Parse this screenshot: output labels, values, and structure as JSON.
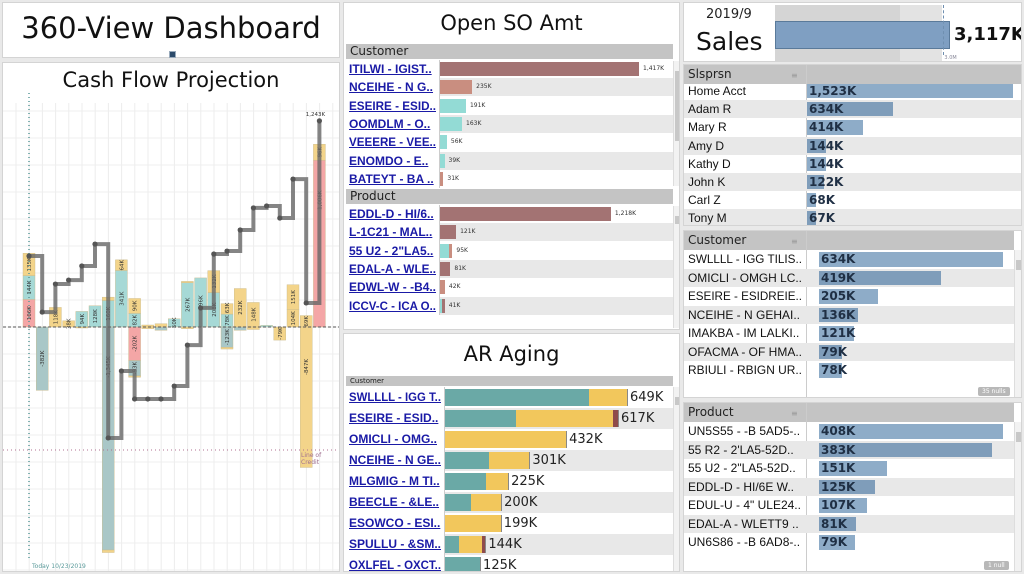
{
  "dashboard": {
    "title": "360-View Dashboard"
  },
  "cash_flow": {
    "title": "Cash Flow Projection",
    "today_label": "Today 10/23/2019",
    "credit_label": "Line of Credit",
    "chart_data": {
      "type": "bar",
      "title": "Cash Flow Projection",
      "units": "K",
      "colors": {
        "ar": "#a6d9d6",
        "ar_neg": "#a9c7c7",
        "so": "#f3d48a",
        "ap": "#f4a6a6",
        "line": "#666666"
      },
      "reference_lines": {
        "today": "Today 10/23/2019",
        "line_of_credit": -742
      },
      "end_label": "1,243K",
      "columns": [
        {
          "segments": [
            {
              "type": "ap",
              "value": 166,
              "label": "166K"
            },
            {
              "type": "ar",
              "value": 144,
              "label": "144K"
            },
            {
              "type": "so",
              "value": 135,
              "label": "135K"
            }
          ],
          "balance": 428
        },
        {
          "segments": [
            {
              "type": "ar_neg",
              "value": -382,
              "label": "-382K"
            }
          ],
          "balance": 90
        },
        {
          "segments": [
            {
              "type": "so",
              "value": 118,
              "label": "118K"
            }
          ],
          "balance": 259
        },
        {
          "segments": [
            {
              "type": "so",
              "value": 38,
              "label": "38K"
            }
          ],
          "balance": 283
        },
        {
          "segments": [
            {
              "type": "ar",
              "value": 94,
              "label": "94K"
            },
            {
              "type": "so",
              "value": -5
            }
          ],
          "balance": 368
        },
        {
          "segments": [
            {
              "type": "ar",
              "value": 128,
              "label": "128K"
            }
          ],
          "balance": 500
        },
        {
          "segments": [
            {
              "type": "ar",
              "value": 160,
              "label": "160K"
            },
            {
              "type": "so",
              "value": 20
            },
            {
              "type": "ar_neg",
              "value": -1345,
              "label": "-1,345K"
            },
            {
              "type": "so",
              "value": -15
            }
          ],
          "balance": -669
        },
        {
          "segments": [
            {
              "type": "ar",
              "value": 341,
              "label": "341K"
            },
            {
              "type": "so",
              "value": 64,
              "label": "64K"
            }
          ],
          "balance": -265
        },
        {
          "segments": [
            {
              "type": "ar",
              "value": 82,
              "label": "82K"
            },
            {
              "type": "so",
              "value": 90,
              "label": "90K"
            },
            {
              "type": "ap",
              "value": -202,
              "label": "-202K"
            },
            {
              "type": "ar_neg",
              "value": -93,
              "label": "-93K"
            },
            {
              "type": "so",
              "value": -8
            }
          ],
          "balance": -434
        },
        {
          "segments": [
            {
              "type": "so",
              "value": 12
            },
            {
              "type": "so",
              "value": -10
            }
          ],
          "balance": -434
        },
        {
          "segments": [
            {
              "type": "so",
              "value": 20
            },
            {
              "type": "ar_neg",
              "value": -20
            }
          ],
          "balance": -434
        },
        {
          "segments": [
            {
              "type": "ar",
              "value": 50,
              "label": "50K"
            }
          ],
          "balance": -356
        },
        {
          "segments": [
            {
              "type": "ar",
              "value": 267,
              "label": "267K"
            },
            {
              "type": "so",
              "value": 8
            },
            {
              "type": "so",
              "value": -10
            }
          ],
          "balance": -109
        },
        {
          "segments": [
            {
              "type": "ar",
              "value": 296,
              "label": "296K"
            }
          ],
          "balance": 115
        },
        {
          "segments": [
            {
              "type": "ar",
              "value": 208,
              "label": "208K"
            },
            {
              "type": "so",
              "value": 132,
              "label": "132K"
            }
          ],
          "balance": 440
        },
        {
          "segments": [
            {
              "type": "ar",
              "value": 78,
              "label": "78K"
            },
            {
              "type": "so",
              "value": 63,
              "label": "63K"
            },
            {
              "type": "ar_neg",
              "value": -123,
              "label": "-123K"
            },
            {
              "type": "so",
              "value": -10
            }
          ],
          "balance": 458
        },
        {
          "segments": [
            {
              "type": "so",
              "value": 232,
              "label": "232K"
            },
            {
              "type": "ar_neg",
              "value": -20
            }
          ],
          "balance": 585
        },
        {
          "segments": [
            {
              "type": "so",
              "value": 148,
              "label": "148K"
            },
            {
              "type": "so",
              "value": -15
            }
          ],
          "balance": 718
        },
        {
          "segments": [
            {
              "type": "ar",
              "value": 10
            }
          ],
          "balance": 730
        },
        {
          "segments": [
            {
              "type": "so",
              "value": -79,
              "label": "-79K"
            }
          ],
          "balance": 657
        },
        {
          "segments": [
            {
              "type": "so",
              "value": 104,
              "label": "104K"
            },
            {
              "type": "so",
              "value": 151,
              "label": "151K"
            }
          ],
          "balance": 892
        },
        {
          "segments": [
            {
              "type": "so",
              "value": 69,
              "label": "69K"
            },
            {
              "type": "so",
              "value": -847,
              "label": "-847K"
            }
          ],
          "balance": 145
        },
        {
          "segments": [
            {
              "type": "ap",
              "value": 1006,
              "label": "1,006K"
            },
            {
              "type": "so",
              "value": 96,
              "label": "96K"
            }
          ],
          "balance": 1243
        }
      ]
    }
  },
  "open_so": {
    "title": "Open SO Amt",
    "colors": {
      "mauve": "#a37373",
      "salmon": "#c98e80",
      "cyan": "#93dbd5"
    },
    "max": 1417,
    "customer": {
      "header": "Customer",
      "rows": [
        {
          "label": "ITILWI  -  IGIST..",
          "value": "1,417K",
          "segs": [
            [
              "mauve",
              1417
            ]
          ]
        },
        {
          "label": "NCEIHE  -  N G..",
          "value": "235K",
          "segs": [
            [
              "salmon",
              235
            ]
          ]
        },
        {
          "label": "ESEIRE  -  ESID..",
          "value": "191K",
          "segs": [
            [
              "cyan",
              191
            ]
          ]
        },
        {
          "label": "OOMDLM  -  O..",
          "value": "163K",
          "segs": [
            [
              "cyan",
              163
            ]
          ]
        },
        {
          "label": "VEEERE  -  VEE..",
          "value": "56K",
          "segs": [
            [
              "cyan",
              56
            ]
          ]
        },
        {
          "label": "ENOMDO  -  E..",
          "value": "39K",
          "segs": [
            [
              "cyan",
              39
            ]
          ]
        },
        {
          "label": "BATEYT  -  BA ..",
          "value": "31K",
          "segs": [
            [
              "salmon",
              31
            ]
          ]
        }
      ]
    },
    "product": {
      "header": "Product",
      "rows": [
        {
          "label": "EDDL-D  -  HI/6..",
          "value": "1,218K",
          "segs": [
            [
              "mauve",
              1218
            ]
          ]
        },
        {
          "label": "L-1C21  -  MAL..",
          "value": "121K",
          "segs": [
            [
              "mauve",
              121
            ]
          ]
        },
        {
          "label": "55 U2  -  2\"LA5..",
          "value": "95K",
          "segs": [
            [
              "cyan",
              70
            ],
            [
              "salmon",
              25
            ]
          ]
        },
        {
          "label": "EDAL-A  -   WLE..",
          "value": "81K",
          "segs": [
            [
              "mauve",
              81
            ]
          ]
        },
        {
          "label": "EDWL-W  -  -B4..",
          "value": "42K",
          "segs": [
            [
              "salmon",
              42
            ]
          ]
        },
        {
          "label": "ICCV-C  -  ICA O..",
          "value": "41K",
          "segs": [
            [
              "cyan",
              20
            ],
            [
              "mauve",
              21
            ]
          ]
        }
      ]
    }
  },
  "ar_aging": {
    "title": "AR Aging",
    "header": "Customer",
    "colors": {
      "current": "#6aa9a6",
      "d30": "#f2c75c",
      "d60": "#8f4b4b"
    },
    "max": 649,
    "rows": [
      {
        "label": "SWLLLL  -  IGG T..",
        "value": "649K",
        "segs": [
          [
            "current",
            514
          ],
          [
            "d30",
            135
          ]
        ]
      },
      {
        "label": "ESEIRE  -  ESID..",
        "value": "617K",
        "segs": [
          [
            "current",
            253
          ],
          [
            "d30",
            346
          ],
          [
            "d60",
            18
          ]
        ]
      },
      {
        "label": "OMICLI  -  OMG..",
        "value": "432K",
        "segs": [
          [
            "d30",
            432
          ]
        ]
      },
      {
        "label": "NCEIHE  -  N GE..",
        "value": "301K",
        "segs": [
          [
            "current",
            157
          ],
          [
            "d30",
            144
          ]
        ]
      },
      {
        "label": "MLGMIG  -  M TI..",
        "value": "225K",
        "segs": [
          [
            "current",
            146
          ],
          [
            "d30",
            79
          ]
        ]
      },
      {
        "label": "BEECLE  -   &LE..",
        "value": "200K",
        "segs": [
          [
            "current",
            93
          ],
          [
            "d30",
            107
          ]
        ]
      },
      {
        "label": "ESOWCO  -  ESI..",
        "value": "199K",
        "segs": [
          [
            "d30",
            199
          ]
        ]
      },
      {
        "label": "SPULLU  -  &SM..",
        "value": "144K",
        "segs": [
          [
            "current",
            50
          ],
          [
            "d30",
            82
          ],
          [
            "d60",
            12
          ]
        ]
      },
      {
        "label": "OXLFEL  -  OXCT..",
        "value": "125K",
        "segs": [
          [
            "current",
            125
          ]
        ]
      }
    ]
  },
  "sales": {
    "period": "2019/9",
    "label": "Sales",
    "value": "3,117K",
    "actual": 3117,
    "target": 3000,
    "target_label": "3.0M",
    "bar_color": "#7f9fc2"
  },
  "slsprsn": {
    "header": "Slsprsn",
    "max": 1523,
    "rows": [
      {
        "label": "Home Acct",
        "value": "1,523K",
        "n": 1523
      },
      {
        "label": "Adam R",
        "value": "634K",
        "n": 634
      },
      {
        "label": "Mary R",
        "value": "414K",
        "n": 414
      },
      {
        "label": "Amy D",
        "value": "144K",
        "n": 144
      },
      {
        "label": "Kathy D",
        "value": "144K",
        "n": 144
      },
      {
        "label": "John K",
        "value": "122K",
        "n": 122
      },
      {
        "label": "Carl Z",
        "value": "68K",
        "n": 68
      },
      {
        "label": "Tony M",
        "value": "67K",
        "n": 67
      }
    ]
  },
  "sales_customer": {
    "header": "Customer",
    "nulls": "35 nulls",
    "max": 634,
    "rows": [
      {
        "label": "SWLLLL  -  IGG TILIS..",
        "value": "634K",
        "n": 634
      },
      {
        "label": "OMICLI  -  OMGH LC..",
        "value": "419K",
        "n": 419
      },
      {
        "label": "ESEIRE  -  ESIDREIE..",
        "value": "205K",
        "n": 205
      },
      {
        "label": "NCEIHE  -  N GEHAI..",
        "value": "136K",
        "n": 136
      },
      {
        "label": "IMAKBA  -  IM LALKI..",
        "value": "121K",
        "n": 121
      },
      {
        "label": "OFACMA  -  OF HMA..",
        "value": "79K",
        "n": 79
      },
      {
        "label": "RBIULI  -  RBIGN UR..",
        "value": "78K",
        "n": 78
      }
    ]
  },
  "sales_product": {
    "header": "Product",
    "nulls": "1 null",
    "max": 408,
    "rows": [
      {
        "label": "UN5S55  -  -B 5AD5-..",
        "value": "408K",
        "n": 408
      },
      {
        "label": "55 R2  -  2'LA5-52D..",
        "value": "383K",
        "n": 383
      },
      {
        "label": "55 U2  -  2\"LA5-52D..",
        "value": "151K",
        "n": 151
      },
      {
        "label": "EDDL-D  -  HI/6E W..",
        "value": "125K",
        "n": 125
      },
      {
        "label": "EDUL-U  -  4\" ULE24..",
        "value": "107K",
        "n": 107
      },
      {
        "label": "EDAL-A  -   WLETT9 ..",
        "value": "81K",
        "n": 81
      },
      {
        "label": "UN6S86  -  -B 6AD8-..",
        "value": "79K",
        "n": 79
      }
    ]
  }
}
